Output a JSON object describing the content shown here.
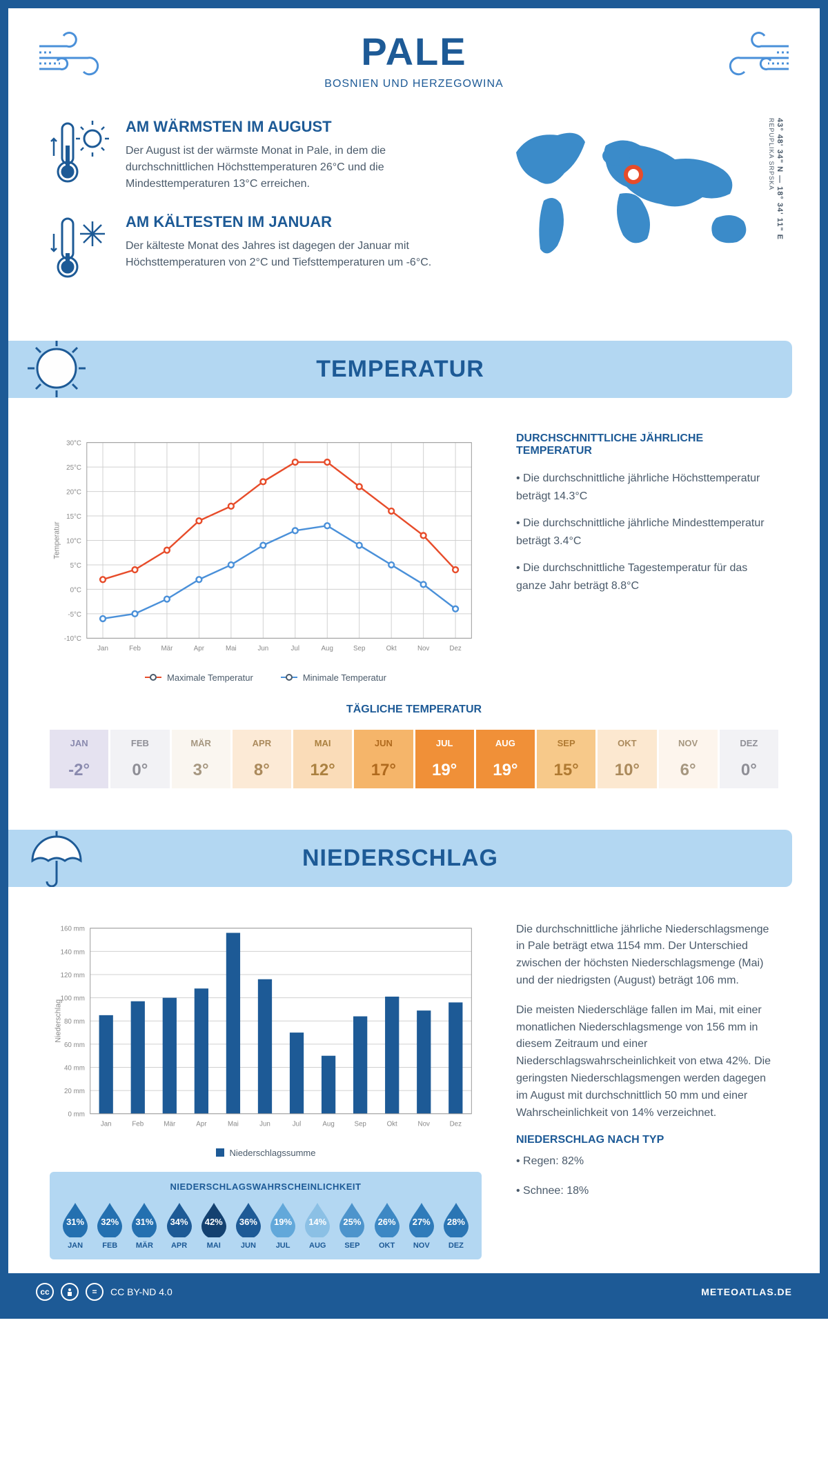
{
  "header": {
    "title": "PALE",
    "subtitle": "BOSNIEN UND HERZEGOWINA"
  },
  "coords": "43° 48' 34\" N — 18° 34' 11\" E",
  "region": "REPUPLIKA SRPSKA",
  "facts": {
    "warm": {
      "title": "AM WÄRMSTEN IM AUGUST",
      "text": "Der August ist der wärmste Monat in Pale, in dem die durchschnittlichen Höchsttemperaturen 26°C und die Mindesttemperaturen 13°C erreichen."
    },
    "cold": {
      "title": "AM KÄLTESTEN IM JANUAR",
      "text": "Der kälteste Monat des Jahres ist dagegen der Januar mit Höchsttemperaturen von 2°C und Tiefsttemperaturen um -6°C."
    }
  },
  "sections": {
    "temp": "TEMPERATUR",
    "precip": "NIEDERSCHLAG"
  },
  "temp_chart": {
    "months": [
      "Jan",
      "Feb",
      "Mär",
      "Apr",
      "Mai",
      "Jun",
      "Jul",
      "Aug",
      "Sep",
      "Okt",
      "Nov",
      "Dez"
    ],
    "max": [
      2,
      4,
      8,
      14,
      17,
      22,
      26,
      26,
      21,
      16,
      11,
      4
    ],
    "min": [
      -6,
      -5,
      -2,
      2,
      5,
      9,
      12,
      13,
      9,
      5,
      1,
      -4
    ],
    "y_min": -10,
    "y_max": 30,
    "y_step": 5,
    "max_color": "#e74c2a",
    "min_color": "#4a90d9",
    "grid_color": "#d0d0d0",
    "y_label": "Temperatur",
    "legend_max": "Maximale Temperatur",
    "legend_min": "Minimale Temperatur"
  },
  "temp_info": {
    "heading": "DURCHSCHNITTLICHE JÄHRLICHE TEMPERATUR",
    "p1": "• Die durchschnittliche jährliche Höchsttemperatur beträgt 14.3°C",
    "p2": "• Die durchschnittliche jährliche Mindesttemperatur beträgt 3.4°C",
    "p3": "• Die durchschnittliche Tagestemperatur für das ganze Jahr beträgt 8.8°C"
  },
  "daily_temp": {
    "heading": "TÄGLICHE TEMPERATUR",
    "months": [
      "JAN",
      "FEB",
      "MÄR",
      "APR",
      "MAI",
      "JUN",
      "JUL",
      "AUG",
      "SEP",
      "OKT",
      "NOV",
      "DEZ"
    ],
    "values": [
      "-2°",
      "0°",
      "3°",
      "8°",
      "12°",
      "17°",
      "19°",
      "19°",
      "15°",
      "10°",
      "6°",
      "0°"
    ],
    "bg_colors": [
      "#e5e2f0",
      "#f2f2f5",
      "#faf6f0",
      "#fcead6",
      "#fadcb8",
      "#f5b56a",
      "#f09038",
      "#f09038",
      "#f7c98a",
      "#fce8d0",
      "#fdf5ed",
      "#f2f2f5"
    ],
    "text_colors": [
      "#8a8aae",
      "#8f8f96",
      "#a69780",
      "#ab8a5c",
      "#ab8140",
      "#b06a1e",
      "#ffffff",
      "#ffffff",
      "#b07a32",
      "#ab8a5c",
      "#a69780",
      "#8f8f96"
    ]
  },
  "precip_chart": {
    "months": [
      "Jan",
      "Feb",
      "Mär",
      "Apr",
      "Mai",
      "Jun",
      "Jul",
      "Aug",
      "Sep",
      "Okt",
      "Nov",
      "Dez"
    ],
    "values": [
      85,
      97,
      100,
      108,
      156,
      116,
      70,
      50,
      84,
      101,
      89,
      96
    ],
    "y_min": 0,
    "y_max": 160,
    "y_step": 20,
    "bar_color": "#1d5a96",
    "grid_color": "#d0d0d0",
    "y_label": "Niederschlag",
    "legend": "Niederschlagssumme"
  },
  "precip_text": {
    "p1": "Die durchschnittliche jährliche Niederschlagsmenge in Pale beträgt etwa 1154 mm. Der Unterschied zwischen der höchsten Niederschlagsmenge (Mai) und der niedrigsten (August) beträgt 106 mm.",
    "p2": "Die meisten Niederschläge fallen im Mai, mit einer monatlichen Niederschlagsmenge von 156 mm in diesem Zeitraum und einer Niederschlagswahrscheinlichkeit von etwa 42%. Die geringsten Niederschlagsmengen werden dagegen im August mit durchschnittlich 50 mm und einer Wahrscheinlichkeit von 14% verzeichnet.",
    "type_heading": "NIEDERSCHLAG NACH TYP",
    "rain": "• Regen: 82%",
    "snow": "• Schnee: 18%"
  },
  "prob": {
    "heading": "NIEDERSCHLAGSWAHRSCHEINLICHKEIT",
    "months": [
      "JAN",
      "FEB",
      "MÄR",
      "APR",
      "MAI",
      "JUN",
      "JUL",
      "AUG",
      "SEP",
      "OKT",
      "NOV",
      "DEZ"
    ],
    "values": [
      "31%",
      "32%",
      "31%",
      "34%",
      "42%",
      "36%",
      "19%",
      "14%",
      "25%",
      "26%",
      "27%",
      "28%"
    ],
    "colors": [
      "#2470b0",
      "#2470b0",
      "#2470b0",
      "#1d5a96",
      "#144170",
      "#1d5a96",
      "#62a8da",
      "#8bc0e5",
      "#4d94cc",
      "#3d88c4",
      "#2f7bba",
      "#2a75b4"
    ]
  },
  "footer": {
    "license": "CC BY-ND 4.0",
    "site": "METEOATLAS.DE"
  }
}
